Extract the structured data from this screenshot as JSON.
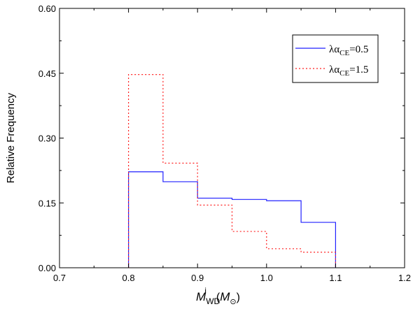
{
  "chart_data": {
    "type": "histogram-step",
    "title": "",
    "xlabel": {
      "symbol": "M",
      "superscript": "i",
      "subscript": "WD",
      "paren_open": "(",
      "unit_symbol": "M",
      "unit_subscript": "⊙",
      "paren_close": ")"
    },
    "ylabel": "Relative Frequency",
    "xlim": [
      0.7,
      1.2
    ],
    "ylim": [
      0.0,
      0.6
    ],
    "xticks": [
      "0.7",
      "0.8",
      "0.9",
      "1.0",
      "1.1",
      "1.2"
    ],
    "yticks": [
      "0.00",
      "0.15",
      "0.30",
      "0.45",
      "0.60"
    ],
    "bin_edges": [
      0.8,
      0.85,
      0.9,
      0.95,
      1.0,
      1.05,
      1.1
    ],
    "series": [
      {
        "name": "lambda_alpha_CE_0.5",
        "legend": {
          "prefix": "λα",
          "sub": "CE",
          "suffix": "=0.5"
        },
        "color": "#2020ff",
        "dash": "solid",
        "values": [
          0.222,
          0.199,
          0.161,
          0.158,
          0.155,
          0.105
        ]
      },
      {
        "name": "lambda_alpha_CE_1.5",
        "legend": {
          "prefix": "λα",
          "sub": "CE",
          "suffix": "=1.5"
        },
        "color": "#ff2020",
        "dash": "dotted",
        "values": [
          0.447,
          0.242,
          0.145,
          0.084,
          0.044,
          0.036
        ]
      }
    ],
    "legend_position": "top-right"
  }
}
